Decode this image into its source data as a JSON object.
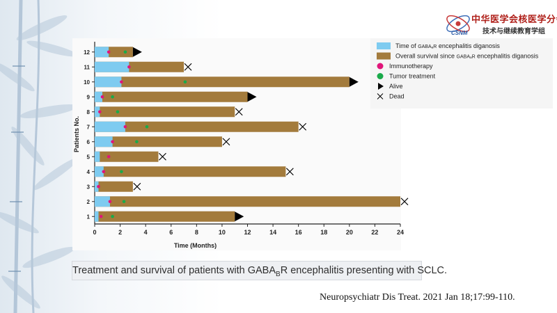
{
  "slide": {
    "logo_cn_line1": "中华医学会核医学分会",
    "logo_cn_line2": "技术与继续教育学组",
    "logo_en": "CSNM",
    "caption_pre": "Treatment and survival of patients with GABA",
    "caption_sub": "B",
    "caption_post": "R encephalitis presenting with SCLC.",
    "citation": "Neuropsychiatr Dis Treat. 2021 Jan 18;17:99-110."
  },
  "colors": {
    "diagnosis_bar": "#7ecbf0",
    "survival_bar": "#a37b3c",
    "immunotherapy": "#e0157a",
    "tumor_treatment": "#1aaa4a",
    "alive_marker": "#000000",
    "dead_marker": "#000000"
  },
  "chart_data": {
    "type": "bar",
    "orientation": "horizontal",
    "stacked": true,
    "xlabel": "Time (Months)",
    "ylabel": "Patients No.",
    "xlim": [
      0,
      24
    ],
    "xticks": [
      0,
      2,
      4,
      6,
      8,
      10,
      12,
      14,
      16,
      18,
      20,
      22,
      24
    ],
    "grid": false,
    "legend_position": "top-right",
    "legend": [
      {
        "key": "diagnosis",
        "label_pre": "Time of ",
        "label_small": "GABAₐR",
        "label_post": " encephalitis diganosis",
        "marker": "box",
        "color": "#7ecbf0"
      },
      {
        "key": "survival",
        "label_pre": "Overall survival since ",
        "label_small": "GABAₐR",
        "label_post": " encephalitis diganosis",
        "marker": "box",
        "color": "#a37b3c"
      },
      {
        "key": "immuno",
        "label_pre": "Immunotherapy",
        "label_small": "",
        "label_post": "",
        "marker": "dot",
        "color": "#e0157a"
      },
      {
        "key": "tumor",
        "label_pre": "Tumor treatment",
        "label_small": "",
        "label_post": "",
        "marker": "dot",
        "color": "#1aaa4a"
      },
      {
        "key": "alive",
        "label_pre": "Alive",
        "label_small": "",
        "label_post": "",
        "marker": "triangle",
        "color": "#000000"
      },
      {
        "key": "dead",
        "label_pre": "Dead",
        "label_small": "",
        "label_post": "",
        "marker": "cross",
        "color": "#000000"
      }
    ],
    "patients": [
      {
        "id": 1,
        "diagnosis_time": 0.3,
        "survival_end": 11.0,
        "immunotherapy": 0.5,
        "tumor_treatment": 1.4,
        "outcome": "alive"
      },
      {
        "id": 2,
        "diagnosis_time": 1.2,
        "survival_end": 24.0,
        "immunotherapy": 1.2,
        "tumor_treatment": 2.3,
        "outcome": "dead"
      },
      {
        "id": 3,
        "diagnosis_time": 0.3,
        "survival_end": 3.0,
        "immunotherapy": 0.3,
        "tumor_treatment": null,
        "outcome": "dead"
      },
      {
        "id": 4,
        "diagnosis_time": 0.7,
        "survival_end": 15.0,
        "immunotherapy": 0.7,
        "tumor_treatment": 2.1,
        "outcome": "dead"
      },
      {
        "id": 5,
        "diagnosis_time": 0.4,
        "survival_end": 5.0,
        "immunotherapy": 1.1,
        "tumor_treatment": null,
        "outcome": "dead"
      },
      {
        "id": 6,
        "diagnosis_time": 1.4,
        "survival_end": 10.0,
        "immunotherapy": 1.4,
        "tumor_treatment": 3.3,
        "outcome": "dead"
      },
      {
        "id": 7,
        "diagnosis_time": 2.4,
        "survival_end": 16.0,
        "immunotherapy": 2.4,
        "tumor_treatment": 4.1,
        "outcome": "dead"
      },
      {
        "id": 8,
        "diagnosis_time": 0.4,
        "survival_end": 11.0,
        "immunotherapy": 0.4,
        "tumor_treatment": 1.8,
        "outcome": "dead"
      },
      {
        "id": 9,
        "diagnosis_time": 0.6,
        "survival_end": 12.0,
        "immunotherapy": 0.6,
        "tumor_treatment": 1.4,
        "outcome": "alive"
      },
      {
        "id": 10,
        "diagnosis_time": 2.1,
        "survival_end": 20.0,
        "immunotherapy": 2.1,
        "tumor_treatment": 7.1,
        "outcome": "alive"
      },
      {
        "id": 11,
        "diagnosis_time": 2.7,
        "survival_end": 7.0,
        "immunotherapy": 2.7,
        "tumor_treatment": null,
        "outcome": "dead"
      },
      {
        "id": 12,
        "diagnosis_time": 1.1,
        "survival_end": 3.0,
        "immunotherapy": 1.1,
        "tumor_treatment": 2.4,
        "outcome": "alive"
      }
    ]
  }
}
